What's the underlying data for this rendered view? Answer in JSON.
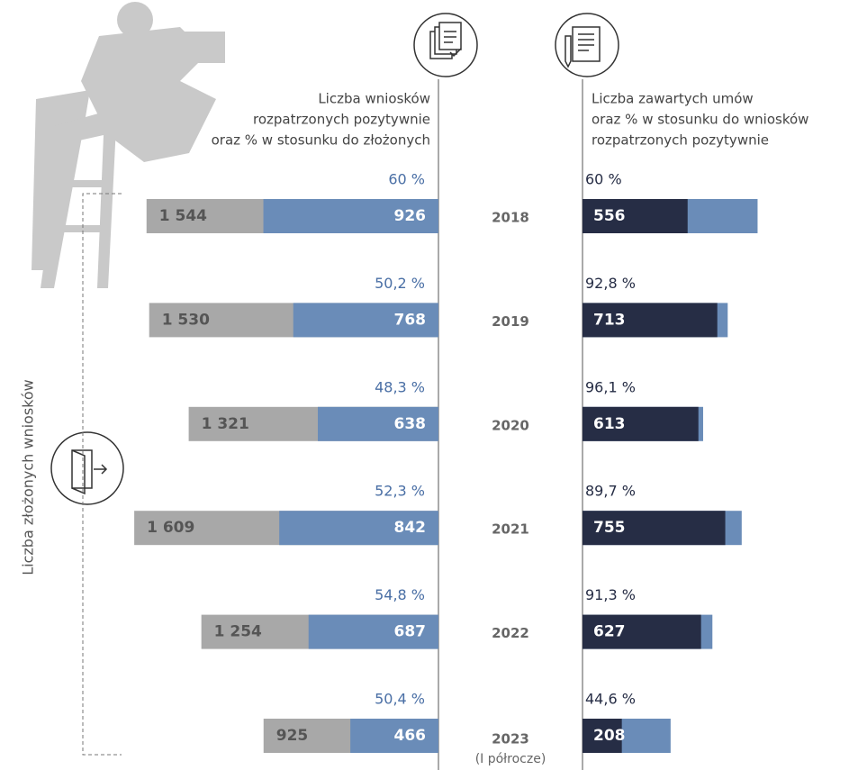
{
  "chart_data": {
    "type": "bar",
    "left_title": [
      "Liczba wniosków",
      "rozpatrzonych pozytywnie",
      "oraz % w stosunku do złożonych"
    ],
    "right_title": [
      "Liczba zawartych umów",
      "oraz % w stosunku do wniosków",
      "rozpatrzonych pozytywnie"
    ],
    "ylabel": "Liczba złożonych wniosków",
    "categories": [
      "2018",
      "2019",
      "2020",
      "2021",
      "2022",
      "2023"
    ],
    "annotations": [
      "(I półrocze)"
    ],
    "series": [
      {
        "color": "#a8a8a8",
        "side": "left",
        "values": [
          1544,
          1530,
          1321,
          1609,
          1254,
          925
        ],
        "value_labels": [
          "1 544",
          "1 530",
          "1 321",
          "1 609",
          "1 254",
          "925"
        ]
      },
      {
        "color": "#6a8cb8",
        "side": "both",
        "values": [
          926,
          768,
          638,
          842,
          687,
          466
        ],
        "value_labels": [
          "926",
          "768",
          "638",
          "842",
          "687",
          "466"
        ]
      },
      {
        "color": "#262d45",
        "side": "right",
        "values": [
          556,
          713,
          613,
          755,
          627,
          208
        ],
        "value_labels": [
          "556",
          "713",
          "613",
          "755",
          "627",
          "208"
        ]
      }
    ],
    "positive_share": {
      "color": "#4a6fa5",
      "values": [
        60,
        50.2,
        48.3,
        52.3,
        54.8,
        50.4
      ],
      "value_labels": [
        "60 %",
        "50,2 %",
        "48,3 %",
        "52,3 %",
        "54,8 %",
        "50,4 %"
      ]
    },
    "contract_share": {
      "color": "#262d45",
      "values": [
        60,
        92.8,
        96.1,
        89.7,
        91.3,
        44.6
      ],
      "value_labels": [
        "60 %",
        "92,8 %",
        "96,1 %",
        "89,7 %",
        "91,3 %",
        "44,6 %"
      ]
    }
  }
}
